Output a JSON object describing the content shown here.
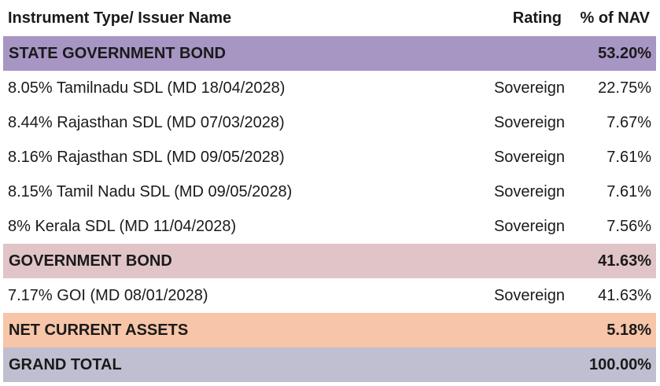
{
  "header": {
    "col1": "Instrument Type/ Issuer Name",
    "col2": "Rating",
    "col3": "% of NAV"
  },
  "sections": {
    "state": {
      "label": "STATE GOVERNMENT BOND",
      "pct": "53.20%",
      "color": "#a795c4"
    },
    "gov": {
      "label": "GOVERNMENT BOND",
      "pct": "41.63%",
      "color": "#e1c4c8"
    },
    "nca": {
      "label": "NET CURRENT ASSETS",
      "pct": "5.18%",
      "color": "#f7c5a8"
    },
    "grand": {
      "label": "GRAND TOTAL",
      "pct": "100.00%",
      "color": "#c0bfd1"
    }
  },
  "state_rows": [
    {
      "name": "8.05% Tamilnadu SDL (MD 18/04/2028)",
      "rating": "Sovereign",
      "pct": "22.75%"
    },
    {
      "name": "8.44% Rajasthan SDL (MD 07/03/2028)",
      "rating": "Sovereign",
      "pct": "7.67%"
    },
    {
      "name": "8.16% Rajasthan SDL (MD 09/05/2028)",
      "rating": "Sovereign",
      "pct": "7.61%"
    },
    {
      "name": "8.15% Tamil Nadu SDL (MD 09/05/2028)",
      "rating": "Sovereign",
      "pct": "7.61%"
    },
    {
      "name": "8% Kerala SDL (MD 11/04/2028)",
      "rating": "Sovereign",
      "pct": "7.56%"
    }
  ],
  "gov_rows": [
    {
      "name": "7.17% GOI (MD 08/01/2028)",
      "rating": "Sovereign",
      "pct": "41.63%"
    }
  ]
}
